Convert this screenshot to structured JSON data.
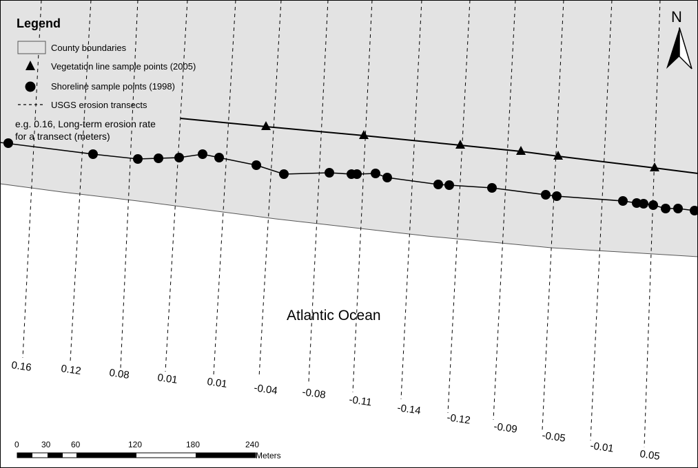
{
  "legend": {
    "title": "Legend",
    "items": [
      {
        "symbol": "county-boundary-swatch",
        "label": "County boundaries"
      },
      {
        "symbol": "triangle-icon",
        "label": "Vegetation line sample points (2005)"
      },
      {
        "symbol": "circle-icon",
        "label": "Shoreline sample points (1998)"
      },
      {
        "symbol": "dashed-line-icon",
        "label": "USGS erosion transects"
      }
    ]
  },
  "note": {
    "line1": "e.g. 0.16, Long-term erosion rate",
    "line2": "for a transect (meters)"
  },
  "ocean_label": "Atlantic Ocean",
  "north_arrow": {
    "label": "N"
  },
  "scale_bar": {
    "ticks": [
      "0",
      "30",
      "60",
      "120",
      "180",
      "240"
    ],
    "unit": "Meters"
  },
  "transect_rates": [
    "0.16",
    "0.12",
    "0.08",
    "0.01",
    "0.01",
    "-0.04",
    "-0.08",
    "-0.11",
    "-0.14",
    "-0.12",
    "-0.09",
    "-0.05",
    "-0.01",
    "0.05"
  ],
  "colors": {
    "county_fill": "#e3e3e3",
    "ocean": "#ffffff",
    "ink": "#000000"
  }
}
